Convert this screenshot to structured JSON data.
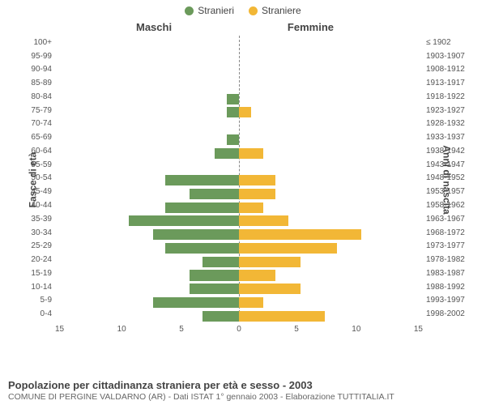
{
  "legend": {
    "male": {
      "label": "Stranieri",
      "color": "#6b9a5b"
    },
    "female": {
      "label": "Straniere",
      "color": "#f2b736"
    }
  },
  "sides": {
    "left": "Maschi",
    "right": "Femmine"
  },
  "y_left_label": "Fasce di età",
  "y_right_label": "Anni di nascita",
  "chart": {
    "type": "population-pyramid",
    "xmax": 15,
    "xticks": [
      15,
      10,
      5,
      0,
      5,
      10,
      15
    ],
    "male_color": "#6b9a5b",
    "female_color": "#f2b736",
    "background": "#ffffff",
    "rows": [
      {
        "age": "100+",
        "birth": "≤ 1902",
        "m": 0,
        "f": 0
      },
      {
        "age": "95-99",
        "birth": "1903-1907",
        "m": 0,
        "f": 0
      },
      {
        "age": "90-94",
        "birth": "1908-1912",
        "m": 0,
        "f": 0
      },
      {
        "age": "85-89",
        "birth": "1913-1917",
        "m": 0,
        "f": 0
      },
      {
        "age": "80-84",
        "birth": "1918-1922",
        "m": 1,
        "f": 0
      },
      {
        "age": "75-79",
        "birth": "1923-1927",
        "m": 1,
        "f": 1
      },
      {
        "age": "70-74",
        "birth": "1928-1932",
        "m": 0,
        "f": 0
      },
      {
        "age": "65-69",
        "birth": "1933-1937",
        "m": 1,
        "f": 0
      },
      {
        "age": "60-64",
        "birth": "1938-1942",
        "m": 2,
        "f": 2
      },
      {
        "age": "55-59",
        "birth": "1943-1947",
        "m": 0,
        "f": 0
      },
      {
        "age": "50-54",
        "birth": "1948-1952",
        "m": 6,
        "f": 3
      },
      {
        "age": "45-49",
        "birth": "1953-1957",
        "m": 4,
        "f": 3
      },
      {
        "age": "40-44",
        "birth": "1958-1962",
        "m": 6,
        "f": 2
      },
      {
        "age": "35-39",
        "birth": "1963-1967",
        "m": 9,
        "f": 4
      },
      {
        "age": "30-34",
        "birth": "1968-1972",
        "m": 7,
        "f": 10
      },
      {
        "age": "25-29",
        "birth": "1973-1977",
        "m": 6,
        "f": 8
      },
      {
        "age": "20-24",
        "birth": "1978-1982",
        "m": 3,
        "f": 5
      },
      {
        "age": "15-19",
        "birth": "1983-1987",
        "m": 4,
        "f": 3
      },
      {
        "age": "10-14",
        "birth": "1988-1992",
        "m": 4,
        "f": 5
      },
      {
        "age": "5-9",
        "birth": "1993-1997",
        "m": 7,
        "f": 2
      },
      {
        "age": "0-4",
        "birth": "1998-2002",
        "m": 3,
        "f": 7
      }
    ]
  },
  "footer": {
    "title": "Popolazione per cittadinanza straniera per età e sesso - 2003",
    "sub": "COMUNE DI PERGINE VALDARNO (AR) - Dati ISTAT 1° gennaio 2003 - Elaborazione TUTTITALIA.IT"
  }
}
